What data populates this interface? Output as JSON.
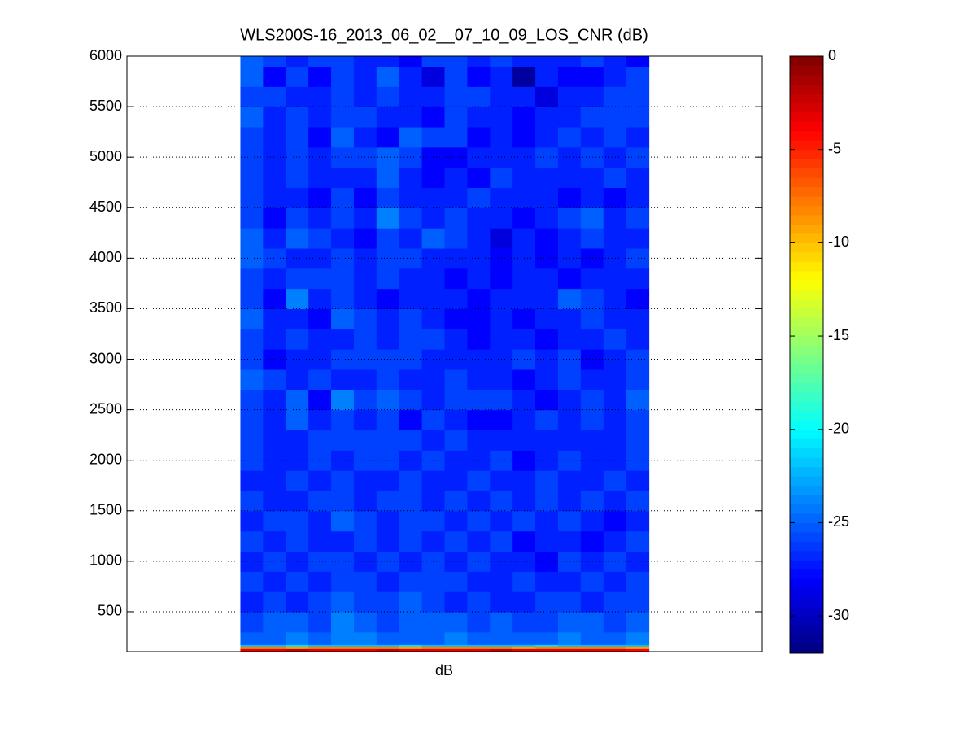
{
  "chart_data": {
    "type": "heatmap",
    "title": "WLS200S-16_2013_06_02__07_10_09_LOS_CNR (dB)",
    "x_label": "dB",
    "colormap": "jet",
    "clim": [
      -32,
      0
    ],
    "cticks": [
      0,
      -5,
      -10,
      -15,
      -20,
      -25,
      -30
    ],
    "xlim": [
      -4.5,
      23.5
    ],
    "x": [
      1,
      2,
      3,
      4,
      5,
      6,
      7,
      8,
      9,
      10,
      11,
      12,
      13,
      14,
      15,
      16,
      17,
      18
    ],
    "ylim": [
      105,
      6000
    ],
    "yticks": [
      500,
      1000,
      1500,
      2000,
      2500,
      3000,
      3500,
      4000,
      4500,
      5000,
      5500,
      6000
    ],
    "grid": true,
    "y_edges": [
      105,
      135,
      160,
      175,
      300,
      500,
      700,
      900,
      1100,
      1300,
      1500,
      1700,
      1900,
      2100,
      2300,
      2500,
      2700,
      2900,
      3100,
      3300,
      3500,
      3700,
      3900,
      4100,
      4300,
      4500,
      4700,
      4900,
      5100,
      5300,
      5500,
      5700,
      5900,
      6000
    ],
    "values": [
      [
        -3,
        -3,
        -2,
        -3,
        -3,
        -3,
        -2,
        -3,
        -3,
        -3,
        -3,
        -2,
        -3,
        -3,
        -3,
        -3,
        -3,
        -4
      ],
      [
        -8,
        -8,
        -9,
        -8,
        -8,
        -8,
        -8,
        -9,
        -8,
        -8,
        -8,
        -8,
        -9,
        -8,
        -8,
        -8,
        -8,
        -9
      ],
      [
        -22,
        -22,
        -21,
        -22,
        -22,
        -22,
        -22,
        -21,
        -22,
        -22,
        -22,
        -22,
        -22,
        -21,
        -22,
        -22,
        -22,
        -22
      ],
      [
        -25,
        -25,
        -24,
        -25,
        -24,
        -24,
        -25,
        -25,
        -25,
        -24,
        -25,
        -25,
        -25,
        -25,
        -24,
        -25,
        -25,
        -24
      ],
      [
        -26,
        -25,
        -25,
        -26,
        -24,
        -25,
        -26,
        -25,
        -25,
        -25,
        -26,
        -25,
        -26,
        -26,
        -25,
        -25,
        -26,
        -25
      ],
      [
        -27,
        -26,
        -27,
        -26,
        -25,
        -26,
        -26,
        -25,
        -26,
        -27,
        -26,
        -27,
        -27,
        -26,
        -26,
        -27,
        -26,
        -26
      ],
      [
        -26,
        -27,
        -26,
        -27,
        -26,
        -26,
        -27,
        -26,
        -26,
        -26,
        -27,
        -27,
        -26,
        -27,
        -27,
        -26,
        -27,
        -26
      ],
      [
        -27,
        -26,
        -27,
        -26,
        -26,
        -27,
        -26,
        -27,
        -26,
        -27,
        -26,
        -27,
        -27,
        -28,
        -26,
        -27,
        -26,
        -27
      ],
      [
        -26,
        -27,
        -26,
        -27,
        -27,
        -26,
        -27,
        -26,
        -27,
        -26,
        -27,
        -26,
        -28,
        -27,
        -27,
        -28,
        -27,
        -26
      ],
      [
        -27,
        -26,
        -26,
        -27,
        -25,
        -26,
        -27,
        -26,
        -26,
        -27,
        -26,
        -27,
        -26,
        -27,
        -26,
        -27,
        -28,
        -27
      ],
      [
        -26,
        -27,
        -27,
        -26,
        -26,
        -27,
        -26,
        -26,
        -27,
        -26,
        -27,
        -26,
        -27,
        -26,
        -27,
        -26,
        -27,
        -26
      ],
      [
        -27,
        -27,
        -26,
        -27,
        -26,
        -27,
        -27,
        -26,
        -27,
        -27,
        -26,
        -27,
        -27,
        -26,
        -27,
        -27,
        -26,
        -27
      ],
      [
        -26,
        -27,
        -27,
        -26,
        -27,
        -26,
        -26,
        -27,
        -26,
        -27,
        -27,
        -26,
        -28,
        -27,
        -26,
        -27,
        -27,
        -26
      ],
      [
        -26,
        -27,
        -27,
        -26,
        -26,
        -26,
        -26,
        -26,
        -27,
        -26,
        -27,
        -27,
        -27,
        -27,
        -27,
        -27,
        -27,
        -26
      ],
      [
        -26,
        -27,
        -25,
        -27,
        -26,
        -27,
        -26,
        -28,
        -26,
        -27,
        -28,
        -28,
        -27,
        -26,
        -27,
        -26,
        -27,
        -26
      ],
      [
        -26,
        -27,
        -25,
        -28,
        -24,
        -26,
        -25,
        -26,
        -27,
        -26,
        -26,
        -26,
        -27,
        -28,
        -27,
        -26,
        -27,
        -25
      ],
      [
        -25,
        -26,
        -27,
        -26,
        -27,
        -27,
        -26,
        -27,
        -27,
        -26,
        -27,
        -27,
        -28,
        -27,
        -26,
        -27,
        -27,
        -26
      ],
      [
        -26,
        -28,
        -27,
        -27,
        -26,
        -26,
        -26,
        -26,
        -27,
        -27,
        -27,
        -27,
        -26,
        -27,
        -26,
        -28,
        -27,
        -26
      ],
      [
        -26,
        -27,
        -26,
        -27,
        -27,
        -26,
        -27,
        -26,
        -26,
        -27,
        -28,
        -27,
        -27,
        -28,
        -27,
        -27,
        -26,
        -27
      ],
      [
        -25,
        -27,
        -27,
        -28,
        -25,
        -26,
        -27,
        -26,
        -27,
        -28,
        -28,
        -27,
        -28,
        -27,
        -27,
        -26,
        -27,
        -27
      ],
      [
        -26,
        -28,
        -24,
        -27,
        -26,
        -27,
        -28,
        -27,
        -27,
        -27,
        -28,
        -27,
        -27,
        -27,
        -25,
        -26,
        -27,
        -28
      ],
      [
        -26,
        -27,
        -26,
        -26,
        -26,
        -27,
        -26,
        -27,
        -27,
        -28,
        -27,
        -28,
        -27,
        -27,
        -28,
        -27,
        -27,
        -27
      ],
      [
        -25,
        -26,
        -27,
        -27,
        -26,
        -27,
        -26,
        -26,
        -27,
        -27,
        -27,
        -28,
        -27,
        -28,
        -27,
        -28,
        -27,
        -26
      ],
      [
        -25,
        -27,
        -25,
        -26,
        -27,
        -28,
        -26,
        -27,
        -25,
        -26,
        -27,
        -29,
        -27,
        -28,
        -27,
        -26,
        -27,
        -27
      ],
      [
        -26,
        -28,
        -26,
        -27,
        -26,
        -27,
        -24,
        -26,
        -27,
        -26,
        -27,
        -27,
        -28,
        -27,
        -26,
        -25,
        -27,
        -26
      ],
      [
        -26,
        -27,
        -27,
        -28,
        -26,
        -28,
        -26,
        -27,
        -27,
        -27,
        -26,
        -27,
        -27,
        -27,
        -28,
        -27,
        -28,
        -27
      ],
      [
        -26,
        -27,
        -26,
        -27,
        -27,
        -27,
        -25,
        -27,
        -28,
        -27,
        -28,
        -26,
        -27,
        -27,
        -27,
        -27,
        -26,
        -27
      ],
      [
        -26,
        -27,
        -26,
        -27,
        -26,
        -26,
        -25,
        -26,
        -28,
        -28,
        -27,
        -27,
        -27,
        -26,
        -27,
        -26,
        -27,
        -26
      ],
      [
        -26,
        -27,
        -26,
        -28,
        -25,
        -27,
        -28,
        -25,
        -26,
        -26,
        -28,
        -27,
        -28,
        -27,
        -26,
        -27,
        -26,
        -27
      ],
      [
        -25,
        -27,
        -26,
        -27,
        -26,
        -26,
        -27,
        -27,
        -28,
        -26,
        -27,
        -27,
        -28,
        -27,
        -27,
        -26,
        -26,
        -26
      ],
      [
        -26,
        -26,
        -27,
        -27,
        -26,
        -27,
        -26,
        -27,
        -27,
        -26,
        -26,
        -27,
        -27,
        -29,
        -27,
        -27,
        -26,
        -26
      ],
      [
        -25,
        -28,
        -26,
        -28,
        -26,
        -27,
        -25,
        -27,
        -29,
        -26,
        -28,
        -27,
        -31,
        -27,
        -28,
        -28,
        -27,
        -26
      ],
      [
        -25,
        -26,
        -27,
        -26,
        -26,
        -27,
        -27,
        -28,
        -26,
        -26,
        -27,
        -26,
        -27,
        -27,
        -27,
        -26,
        -27,
        -28
      ]
    ]
  }
}
